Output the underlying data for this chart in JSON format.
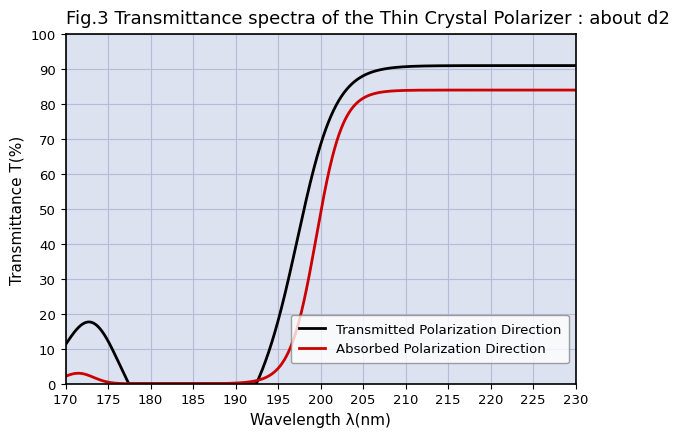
{
  "title": "Fig.3 Transmittance spectra of the Thin Crystal Polarizer : about d2",
  "xlabel": "Wavelength λ(nm)",
  "ylabel": "Transmittance T(%)",
  "xlim": [
    170,
    230
  ],
  "ylim": [
    0,
    100
  ],
  "xticks": [
    170,
    175,
    180,
    185,
    190,
    195,
    200,
    205,
    210,
    215,
    220,
    225,
    230
  ],
  "yticks": [
    0,
    10,
    20,
    30,
    40,
    50,
    60,
    70,
    80,
    90,
    100
  ],
  "grid_color": "#b4bcd8",
  "plot_bg_color": "#dde2f0",
  "line1_color": "#000000",
  "line2_color": "#cc0000",
  "line1_label": "Transmitted Polarization Direction",
  "line2_label": "Absorbed Polarization Direction",
  "line_width": 2.0,
  "title_fontsize": 13,
  "axis_label_fontsize": 11,
  "tick_fontsize": 9.5,
  "legend_fontsize": 9.5
}
